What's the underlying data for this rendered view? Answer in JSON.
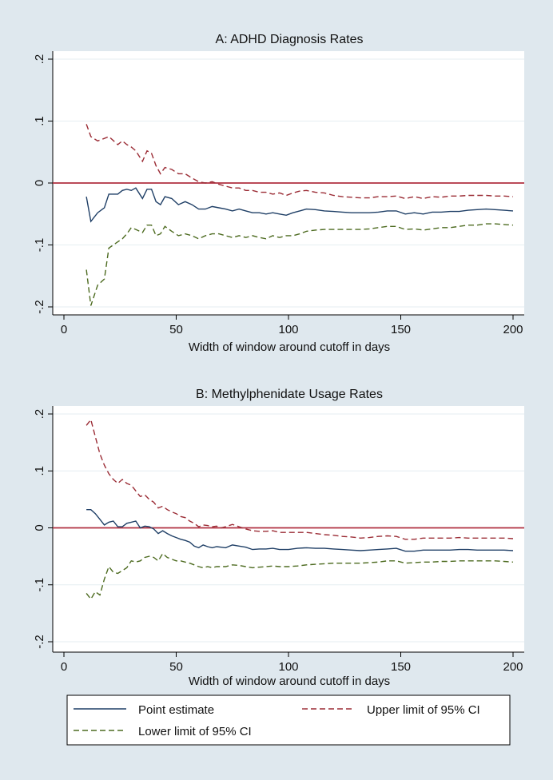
{
  "chart_data": [
    {
      "type": "line",
      "title": "A: ADHD Diagnosis Rates",
      "xlabel": "Width of window around cutoff in days",
      "ylabel": "",
      "xlim": [
        0,
        200
      ],
      "ylim": [
        -0.2,
        0.2
      ],
      "x_ticks": [
        0,
        50,
        100,
        150,
        200
      ],
      "x_tick_labels": [
        "0",
        "50",
        "100",
        "150",
        "200"
      ],
      "y_ticks": [
        0.2,
        0.1,
        0,
        -0.1,
        -0.2
      ],
      "y_tick_labels": [
        ".2",
        ".1",
        "0",
        "-.1",
        "-.2"
      ],
      "reference_line": 0,
      "series": [
        {
          "name": "Point estimate",
          "x": [
            10,
            12,
            15,
            18,
            20,
            24,
            26,
            28,
            30,
            32,
            35,
            37,
            39,
            41,
            43,
            45,
            48,
            51,
            54,
            57,
            60,
            63,
            66,
            69,
            72,
            75,
            78,
            81,
            84,
            87,
            90,
            93,
            96,
            99,
            102,
            105,
            108,
            112,
            116,
            120,
            124,
            128,
            132,
            136,
            140,
            144,
            148,
            152,
            156,
            160,
            164,
            168,
            172,
            176,
            180,
            184,
            188,
            192,
            196,
            200
          ],
          "values": [
            -0.022,
            -0.062,
            -0.048,
            -0.04,
            -0.018,
            -0.018,
            -0.012,
            -0.01,
            -0.012,
            -0.008,
            -0.025,
            -0.01,
            -0.01,
            -0.03,
            -0.035,
            -0.022,
            -0.025,
            -0.035,
            -0.03,
            -0.035,
            -0.042,
            -0.042,
            -0.038,
            -0.04,
            -0.042,
            -0.045,
            -0.042,
            -0.045,
            -0.048,
            -0.048,
            -0.05,
            -0.048,
            -0.05,
            -0.052,
            -0.048,
            -0.045,
            -0.042,
            -0.043,
            -0.045,
            -0.046,
            -0.047,
            -0.048,
            -0.048,
            -0.048,
            -0.047,
            -0.045,
            -0.045,
            -0.05,
            -0.048,
            -0.05,
            -0.047,
            -0.047,
            -0.046,
            -0.046,
            -0.044,
            -0.043,
            -0.042,
            -0.043,
            -0.044,
            -0.045
          ]
        },
        {
          "name": "Upper limit of 95% CI",
          "x": [
            10,
            12,
            15,
            18,
            20,
            24,
            26,
            28,
            30,
            32,
            35,
            37,
            39,
            41,
            43,
            45,
            48,
            51,
            54,
            57,
            60,
            63,
            66,
            69,
            72,
            75,
            78,
            81,
            84,
            87,
            90,
            93,
            96,
            99,
            102,
            105,
            108,
            112,
            116,
            120,
            124,
            128,
            132,
            136,
            140,
            144,
            148,
            152,
            156,
            160,
            164,
            168,
            172,
            176,
            180,
            184,
            188,
            192,
            196,
            200
          ],
          "values": [
            0.095,
            0.075,
            0.068,
            0.072,
            0.075,
            0.062,
            0.068,
            0.062,
            0.058,
            0.052,
            0.035,
            0.052,
            0.048,
            0.028,
            0.015,
            0.025,
            0.022,
            0.015,
            0.015,
            0.008,
            0.002,
            0.0,
            0.002,
            -0.002,
            -0.005,
            -0.008,
            -0.008,
            -0.012,
            -0.012,
            -0.015,
            -0.015,
            -0.018,
            -0.016,
            -0.02,
            -0.016,
            -0.013,
            -0.012,
            -0.015,
            -0.016,
            -0.02,
            -0.022,
            -0.023,
            -0.024,
            -0.024,
            -0.022,
            -0.022,
            -0.021,
            -0.025,
            -0.022,
            -0.025,
            -0.022,
            -0.023,
            -0.021,
            -0.021,
            -0.02,
            -0.02,
            -0.02,
            -0.021,
            -0.021,
            -0.022
          ]
        },
        {
          "name": "Lower limit of 95% CI",
          "x": [
            10,
            12,
            15,
            18,
            20,
            24,
            26,
            28,
            30,
            32,
            35,
            37,
            39,
            41,
            43,
            45,
            48,
            51,
            54,
            57,
            60,
            63,
            66,
            69,
            72,
            75,
            78,
            81,
            84,
            87,
            90,
            93,
            96,
            99,
            102,
            105,
            108,
            112,
            116,
            120,
            124,
            128,
            132,
            136,
            140,
            144,
            148,
            152,
            156,
            160,
            164,
            168,
            172,
            176,
            180,
            184,
            188,
            192,
            196,
            200
          ],
          "values": [
            -0.14,
            -0.198,
            -0.165,
            -0.155,
            -0.105,
            -0.095,
            -0.09,
            -0.082,
            -0.072,
            -0.075,
            -0.08,
            -0.068,
            -0.068,
            -0.085,
            -0.082,
            -0.07,
            -0.078,
            -0.085,
            -0.082,
            -0.085,
            -0.09,
            -0.085,
            -0.082,
            -0.082,
            -0.085,
            -0.088,
            -0.085,
            -0.088,
            -0.085,
            -0.088,
            -0.09,
            -0.085,
            -0.088,
            -0.085,
            -0.085,
            -0.082,
            -0.078,
            -0.076,
            -0.075,
            -0.075,
            -0.075,
            -0.075,
            -0.075,
            -0.074,
            -0.072,
            -0.07,
            -0.07,
            -0.075,
            -0.074,
            -0.076,
            -0.074,
            -0.072,
            -0.072,
            -0.07,
            -0.068,
            -0.068,
            -0.066,
            -0.066,
            -0.067,
            -0.068
          ]
        }
      ]
    },
    {
      "type": "line",
      "title": "B: Methylphenidate Usage Rates",
      "xlabel": "Width of window around cutoff in days",
      "ylabel": "",
      "xlim": [
        0,
        200
      ],
      "ylim": [
        -0.2,
        0.2
      ],
      "x_ticks": [
        0,
        50,
        100,
        150,
        200
      ],
      "x_tick_labels": [
        "0",
        "50",
        "100",
        "150",
        "200"
      ],
      "y_ticks": [
        0.2,
        0.1,
        0,
        -0.1,
        -0.2
      ],
      "y_tick_labels": [
        ".2",
        ".1",
        "0",
        "-.1",
        "-.2"
      ],
      "reference_line": 0,
      "series": [
        {
          "name": "Point estimate",
          "x": [
            10,
            12,
            14,
            16,
            18,
            20,
            22,
            24,
            26,
            28,
            30,
            32,
            34,
            36,
            38,
            40,
            42,
            44,
            46,
            48,
            50,
            52,
            54,
            56,
            58,
            60,
            62,
            64,
            66,
            68,
            70,
            72,
            75,
            78,
            81,
            84,
            87,
            90,
            93,
            96,
            100,
            104,
            108,
            112,
            116,
            120,
            124,
            128,
            132,
            136,
            140,
            144,
            148,
            152,
            156,
            160,
            164,
            168,
            172,
            176,
            180,
            184,
            188,
            192,
            196,
            200
          ],
          "values": [
            0.032,
            0.032,
            0.025,
            0.015,
            0.005,
            0.01,
            0.012,
            0.002,
            0.002,
            0.008,
            0.01,
            0.012,
            0.0,
            0.003,
            0.002,
            -0.002,
            -0.01,
            -0.005,
            -0.01,
            -0.014,
            -0.017,
            -0.02,
            -0.022,
            -0.025,
            -0.032,
            -0.035,
            -0.03,
            -0.033,
            -0.035,
            -0.033,
            -0.034,
            -0.035,
            -0.03,
            -0.032,
            -0.034,
            -0.038,
            -0.037,
            -0.037,
            -0.036,
            -0.038,
            -0.038,
            -0.036,
            -0.035,
            -0.036,
            -0.036,
            -0.037,
            -0.038,
            -0.039,
            -0.04,
            -0.039,
            -0.038,
            -0.037,
            -0.036,
            -0.041,
            -0.041,
            -0.039,
            -0.039,
            -0.039,
            -0.039,
            -0.038,
            -0.038,
            -0.039,
            -0.039,
            -0.039,
            -0.039,
            -0.04
          ]
        },
        {
          "name": "Upper limit of 95% CI",
          "x": [
            10,
            12,
            14,
            16,
            18,
            20,
            22,
            24,
            26,
            28,
            30,
            32,
            34,
            36,
            38,
            40,
            42,
            44,
            46,
            48,
            50,
            52,
            54,
            56,
            58,
            60,
            62,
            64,
            66,
            68,
            70,
            72,
            75,
            78,
            81,
            84,
            87,
            90,
            93,
            96,
            100,
            104,
            108,
            112,
            116,
            120,
            124,
            128,
            132,
            136,
            140,
            144,
            148,
            152,
            156,
            160,
            164,
            168,
            172,
            176,
            180,
            184,
            188,
            192,
            196,
            200
          ],
          "values": [
            0.18,
            0.19,
            0.16,
            0.13,
            0.11,
            0.095,
            0.085,
            0.078,
            0.085,
            0.078,
            0.075,
            0.065,
            0.055,
            0.058,
            0.05,
            0.045,
            0.035,
            0.038,
            0.032,
            0.028,
            0.025,
            0.02,
            0.018,
            0.012,
            0.008,
            0.002,
            0.005,
            0.004,
            0.002,
            0.003,
            0.0,
            0.002,
            0.006,
            0.002,
            -0.002,
            -0.005,
            -0.006,
            -0.006,
            -0.005,
            -0.008,
            -0.008,
            -0.008,
            -0.008,
            -0.01,
            -0.012,
            -0.013,
            -0.015,
            -0.016,
            -0.018,
            -0.017,
            -0.015,
            -0.014,
            -0.015,
            -0.02,
            -0.02,
            -0.018,
            -0.018,
            -0.018,
            -0.018,
            -0.017,
            -0.018,
            -0.018,
            -0.018,
            -0.018,
            -0.018,
            -0.019
          ]
        },
        {
          "name": "Lower limit of 95% CI",
          "x": [
            10,
            12,
            14,
            16,
            18,
            20,
            22,
            24,
            26,
            28,
            30,
            32,
            34,
            36,
            38,
            40,
            42,
            44,
            46,
            48,
            50,
            52,
            54,
            56,
            58,
            60,
            62,
            64,
            66,
            68,
            70,
            72,
            75,
            78,
            81,
            84,
            87,
            90,
            93,
            96,
            100,
            104,
            108,
            112,
            116,
            120,
            124,
            128,
            132,
            136,
            140,
            144,
            148,
            152,
            156,
            160,
            164,
            168,
            172,
            176,
            180,
            184,
            188,
            192,
            196,
            200
          ],
          "values": [
            -0.115,
            -0.125,
            -0.112,
            -0.118,
            -0.09,
            -0.068,
            -0.078,
            -0.08,
            -0.075,
            -0.07,
            -0.058,
            -0.06,
            -0.058,
            -0.052,
            -0.05,
            -0.052,
            -0.058,
            -0.045,
            -0.052,
            -0.055,
            -0.058,
            -0.058,
            -0.06,
            -0.062,
            -0.065,
            -0.068,
            -0.07,
            -0.068,
            -0.07,
            -0.068,
            -0.068,
            -0.068,
            -0.065,
            -0.066,
            -0.068,
            -0.07,
            -0.069,
            -0.068,
            -0.067,
            -0.068,
            -0.068,
            -0.067,
            -0.065,
            -0.064,
            -0.063,
            -0.062,
            -0.062,
            -0.062,
            -0.062,
            -0.061,
            -0.06,
            -0.058,
            -0.058,
            -0.062,
            -0.061,
            -0.06,
            -0.06,
            -0.059,
            -0.059,
            -0.058,
            -0.058,
            -0.058,
            -0.058,
            -0.058,
            -0.059,
            -0.06
          ]
        }
      ]
    }
  ],
  "legend": {
    "point": "Point estimate",
    "upper": "Upper limit of 95% CI",
    "lower": "Lower limit of 95% CI"
  },
  "colors": {
    "background": "#dfe8ee",
    "point": "#1f3f66",
    "upper": "#9b2c35",
    "lower": "#4d6b20",
    "zero_line": "#b03040"
  }
}
